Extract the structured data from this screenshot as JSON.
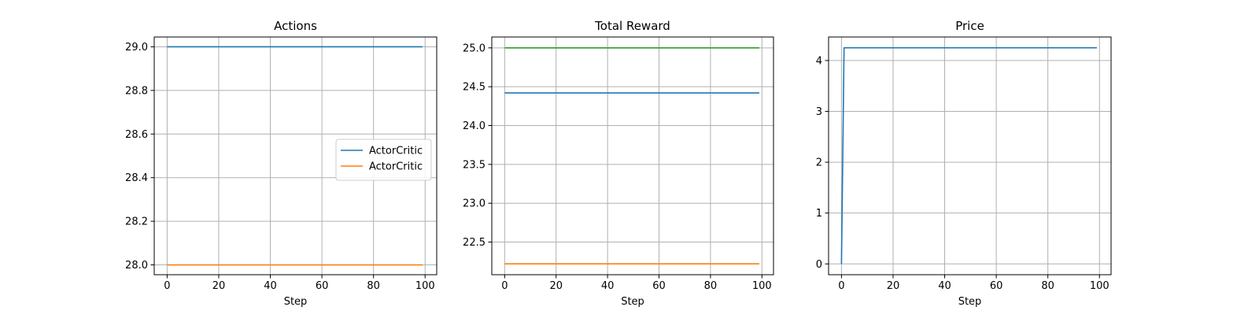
{
  "chart_data": [
    {
      "type": "line",
      "title": "Actions",
      "xlabel": "Step",
      "ylabel": "",
      "xlim": [
        -5,
        104.5
      ],
      "ylim": [
        27.955,
        29.045
      ],
      "xticks": [
        0,
        20,
        40,
        60,
        80,
        100
      ],
      "yticks": [
        28.0,
        28.2,
        28.4,
        28.6,
        28.8,
        29.0
      ],
      "grid": true,
      "legend": "center-right",
      "series": [
        {
          "name": "ActorCritic",
          "color": "#1f77b4",
          "x": [
            0,
            99
          ],
          "y": [
            29.0,
            29.0
          ]
        },
        {
          "name": "ActorCritic",
          "color": "#ff7f0e",
          "x": [
            0,
            99
          ],
          "y": [
            28.0,
            28.0
          ]
        }
      ]
    },
    {
      "type": "line",
      "title": "Total Reward",
      "xlabel": "Step",
      "ylabel": "",
      "xlim": [
        -5,
        104.5
      ],
      "ylim": [
        22.08,
        25.14
      ],
      "xticks": [
        0,
        20,
        40,
        60,
        80,
        100
      ],
      "yticks": [
        22.5,
        23.0,
        23.5,
        24.0,
        24.5,
        25.0
      ],
      "grid": true,
      "legend": "none",
      "series": [
        {
          "color": "#2ca02c",
          "x": [
            0,
            99
          ],
          "y": [
            25.0,
            25.0
          ]
        },
        {
          "color": "#1f77b4",
          "x": [
            0,
            99
          ],
          "y": [
            24.42,
            24.42
          ]
        },
        {
          "color": "#ff7f0e",
          "x": [
            0,
            99
          ],
          "y": [
            22.22,
            22.22
          ]
        }
      ]
    },
    {
      "type": "line",
      "title": "Price",
      "xlabel": "Step",
      "ylabel": "",
      "xlim": [
        -5,
        104.5
      ],
      "ylim": [
        -0.2125,
        4.4625
      ],
      "xticks": [
        0,
        20,
        40,
        60,
        80,
        100
      ],
      "yticks": [
        0,
        1,
        2,
        3,
        4
      ],
      "grid": true,
      "legend": "none",
      "series": [
        {
          "color": "#1f77b4",
          "x": [
            0,
            1,
            99
          ],
          "y": [
            0,
            4.25,
            4.25
          ]
        }
      ]
    }
  ]
}
